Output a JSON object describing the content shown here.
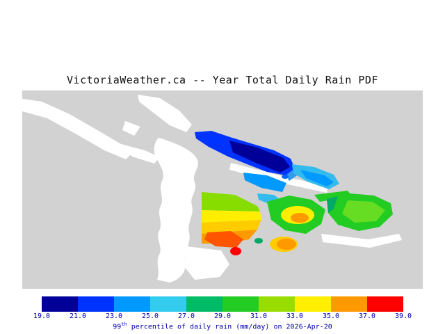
{
  "title": "VictoriaWeather.ca -- Year Total Daily Rain PDF",
  "map": {
    "background_color": "#d2d2d2",
    "water_color": "#ffffff"
  },
  "colorbar": {
    "ticks": [
      "19.0",
      "21.0",
      "23.0",
      "25.0",
      "27.0",
      "29.0",
      "31.0",
      "33.0",
      "35.0",
      "37.0",
      "39.0"
    ],
    "segment_colors": [
      "#000099",
      "#0033ff",
      "#0099ff",
      "#33ccee",
      "#00bb66",
      "#22cc22",
      "#99dd00",
      "#ffee00",
      "#ff9900",
      "#ff0000"
    ],
    "label_color": "#0000aa"
  },
  "caption": {
    "prefix": "99",
    "superscript": "th",
    "rest": " percentile of daily rain (mm/day) on 2026-Apr-20"
  },
  "chart_data": {
    "type": "heatmap",
    "title": "VictoriaWeather.ca -- Year Total Daily Rain PDF",
    "legend_label": "99th percentile of daily rain (mm/day) on 2026-Apr-20",
    "scale_unit": "mm/day",
    "scale_ticks": [
      19.0,
      21.0,
      23.0,
      25.0,
      27.0,
      29.0,
      31.0,
      33.0,
      35.0,
      37.0,
      39.0
    ],
    "scale_range": [
      19.0,
      39.0
    ],
    "legend_position": "bottom"
  }
}
